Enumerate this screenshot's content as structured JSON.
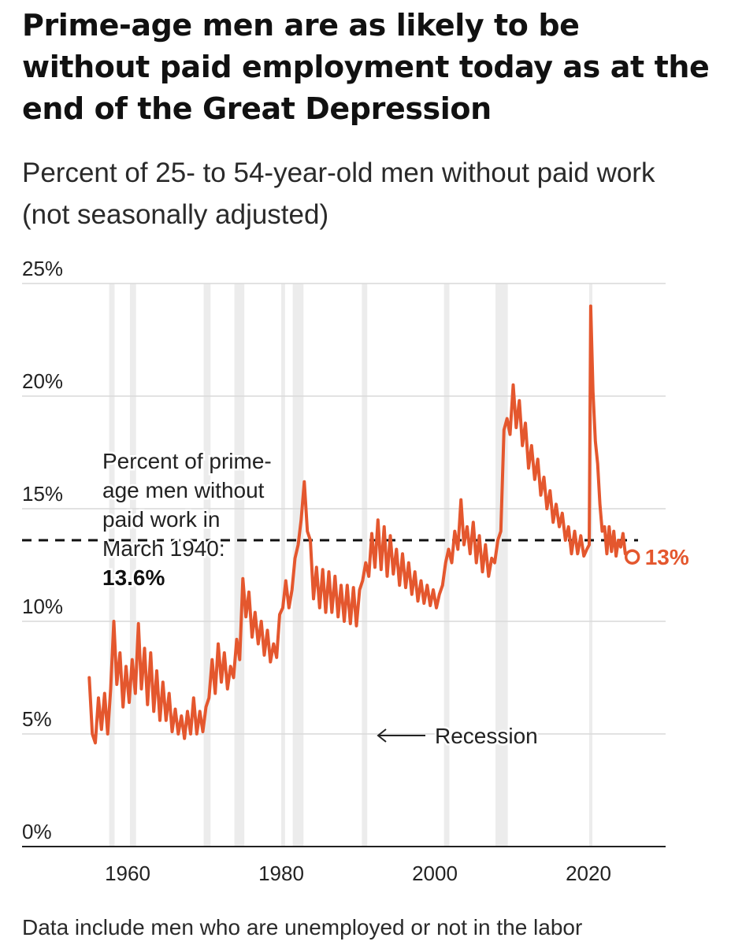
{
  "header": {
    "title": "Prime-age men are as likely to be without paid employment today as at the end of the Great Depression",
    "subtitle": "Percent of 25- to 54-year-old men without paid work (not seasonally adjusted)"
  },
  "footnote": "Data include men who are unemployed or not in the labor",
  "colors": {
    "line": "#e4572e",
    "recession_band": "#ececec",
    "grid": "#d9d9d9",
    "reference_line": "#111111"
  },
  "chart_data": {
    "type": "line",
    "title": "Prime-age men are as likely to be without paid employment today as at the end of the Great Depression",
    "subtitle": "Percent of 25- to 54-year-old men without paid work (not seasonally adjusted)",
    "xlabel": "",
    "ylabel": "",
    "xlim": [
      1950,
      2028
    ],
    "ylim": [
      0,
      25
    ],
    "grid": true,
    "y_ticks": [
      {
        "value": 25,
        "label": "25%"
      },
      {
        "value": 20,
        "label": "20%"
      },
      {
        "value": 15,
        "label": "15%"
      },
      {
        "value": 10,
        "label": "10%"
      },
      {
        "value": 5,
        "label": "5%"
      },
      {
        "value": 0,
        "label": "0%"
      }
    ],
    "x_ticks": [
      {
        "value": 1960,
        "label": "1960"
      },
      {
        "value": 1980,
        "label": "1980"
      },
      {
        "value": 2000,
        "label": "2000"
      },
      {
        "value": 2020,
        "label": "2020"
      }
    ],
    "recessions": [
      [
        1957.6,
        1958.3
      ],
      [
        1960.3,
        1961.1
      ],
      [
        1969.9,
        1970.8
      ],
      [
        1973.9,
        1975.2
      ],
      [
        1980.0,
        1980.5
      ],
      [
        1981.5,
        1982.9
      ],
      [
        1990.5,
        1991.2
      ],
      [
        2001.2,
        2001.9
      ],
      [
        2007.9,
        2009.5
      ],
      [
        2020.1,
        2020.3
      ]
    ],
    "recession_label": "Recession",
    "reference": {
      "value": 13.6,
      "label_lines": [
        "Percent of prime-",
        "age men without",
        "paid work in",
        "March 1940:"
      ],
      "value_label": "13.6%"
    },
    "end_label": "13%",
    "series": [
      {
        "values": [
          [
            1955.0,
            7.5
          ],
          [
            1955.4,
            5.0
          ],
          [
            1955.8,
            4.6
          ],
          [
            1956.2,
            6.6
          ],
          [
            1956.6,
            5.2
          ],
          [
            1957.0,
            6.8
          ],
          [
            1957.4,
            5.0
          ],
          [
            1957.8,
            7.0
          ],
          [
            1958.2,
            10.0
          ],
          [
            1958.6,
            7.2
          ],
          [
            1959.0,
            8.6
          ],
          [
            1959.4,
            6.2
          ],
          [
            1959.8,
            8.0
          ],
          [
            1960.2,
            6.4
          ],
          [
            1960.6,
            8.3
          ],
          [
            1961.0,
            6.8
          ],
          [
            1961.4,
            9.9
          ],
          [
            1961.8,
            7.0
          ],
          [
            1962.2,
            8.8
          ],
          [
            1962.6,
            6.3
          ],
          [
            1963.0,
            8.6
          ],
          [
            1963.4,
            6.0
          ],
          [
            1963.8,
            7.8
          ],
          [
            1964.2,
            5.6
          ],
          [
            1964.6,
            7.3
          ],
          [
            1965.0,
            5.6
          ],
          [
            1965.4,
            6.8
          ],
          [
            1965.8,
            5.1
          ],
          [
            1966.2,
            6.1
          ],
          [
            1966.6,
            5.0
          ],
          [
            1967.0,
            5.8
          ],
          [
            1967.4,
            4.8
          ],
          [
            1967.8,
            6.0
          ],
          [
            1968.2,
            5.0
          ],
          [
            1968.6,
            6.6
          ],
          [
            1969.0,
            5.0
          ],
          [
            1969.4,
            6.0
          ],
          [
            1969.8,
            5.1
          ],
          [
            1970.2,
            6.2
          ],
          [
            1970.6,
            6.6
          ],
          [
            1971.0,
            8.3
          ],
          [
            1971.4,
            6.8
          ],
          [
            1971.8,
            9.0
          ],
          [
            1972.2,
            7.3
          ],
          [
            1972.6,
            8.6
          ],
          [
            1973.0,
            7.0
          ],
          [
            1973.4,
            8.0
          ],
          [
            1973.8,
            7.5
          ],
          [
            1974.2,
            9.2
          ],
          [
            1974.6,
            8.3
          ],
          [
            1975.0,
            11.9
          ],
          [
            1975.4,
            10.2
          ],
          [
            1975.8,
            11.3
          ],
          [
            1976.2,
            9.3
          ],
          [
            1976.6,
            10.4
          ],
          [
            1977.0,
            9.0
          ],
          [
            1977.4,
            10.0
          ],
          [
            1977.8,
            8.5
          ],
          [
            1978.2,
            9.6
          ],
          [
            1978.6,
            8.2
          ],
          [
            1979.0,
            9.0
          ],
          [
            1979.4,
            8.4
          ],
          [
            1979.8,
            10.3
          ],
          [
            1980.2,
            10.6
          ],
          [
            1980.6,
            11.8
          ],
          [
            1981.0,
            10.6
          ],
          [
            1981.4,
            11.4
          ],
          [
            1981.8,
            12.8
          ],
          [
            1982.2,
            13.4
          ],
          [
            1982.6,
            14.5
          ],
          [
            1983.0,
            16.2
          ],
          [
            1983.4,
            14.0
          ],
          [
            1983.8,
            13.6
          ],
          [
            1984.2,
            11.0
          ],
          [
            1984.6,
            12.4
          ],
          [
            1985.0,
            10.6
          ],
          [
            1985.4,
            12.3
          ],
          [
            1985.8,
            10.4
          ],
          [
            1986.2,
            12.2
          ],
          [
            1986.6,
            10.4
          ],
          [
            1987.0,
            12.0
          ],
          [
            1987.4,
            10.2
          ],
          [
            1987.8,
            11.6
          ],
          [
            1988.2,
            10.0
          ],
          [
            1988.6,
            11.6
          ],
          [
            1989.0,
            9.9
          ],
          [
            1989.4,
            11.5
          ],
          [
            1989.8,
            9.8
          ],
          [
            1990.2,
            11.4
          ],
          [
            1990.6,
            11.8
          ],
          [
            1991.0,
            12.6
          ],
          [
            1991.4,
            12.0
          ],
          [
            1991.8,
            13.9
          ],
          [
            1992.2,
            12.4
          ],
          [
            1992.6,
            14.5
          ],
          [
            1993.0,
            12.3
          ],
          [
            1993.4,
            14.2
          ],
          [
            1993.8,
            12.0
          ],
          [
            1994.2,
            13.8
          ],
          [
            1994.6,
            12.1
          ],
          [
            1995.0,
            13.2
          ],
          [
            1995.4,
            11.6
          ],
          [
            1995.8,
            13.0
          ],
          [
            1996.2,
            11.5
          ],
          [
            1996.6,
            12.6
          ],
          [
            1997.0,
            11.2
          ],
          [
            1997.4,
            12.2
          ],
          [
            1997.8,
            10.9
          ],
          [
            1998.2,
            11.8
          ],
          [
            1998.6,
            10.8
          ],
          [
            1999.0,
            11.6
          ],
          [
            1999.4,
            10.7
          ],
          [
            1999.8,
            11.4
          ],
          [
            2000.2,
            10.6
          ],
          [
            2000.6,
            11.2
          ],
          [
            2001.0,
            11.6
          ],
          [
            2001.4,
            12.6
          ],
          [
            2001.8,
            13.2
          ],
          [
            2002.2,
            12.6
          ],
          [
            2002.6,
            14.0
          ],
          [
            2003.0,
            13.2
          ],
          [
            2003.4,
            15.4
          ],
          [
            2003.8,
            13.4
          ],
          [
            2004.2,
            14.2
          ],
          [
            2004.6,
            13.0
          ],
          [
            2005.0,
            14.4
          ],
          [
            2005.4,
            12.6
          ],
          [
            2005.8,
            13.8
          ],
          [
            2006.2,
            12.2
          ],
          [
            2006.6,
            13.4
          ],
          [
            2007.0,
            12.0
          ],
          [
            2007.4,
            12.8
          ],
          [
            2007.8,
            12.6
          ],
          [
            2008.2,
            13.6
          ],
          [
            2008.6,
            14.0
          ],
          [
            2009.0,
            18.5
          ],
          [
            2009.4,
            19.0
          ],
          [
            2009.8,
            18.3
          ],
          [
            2010.2,
            20.5
          ],
          [
            2010.6,
            18.6
          ],
          [
            2011.0,
            19.8
          ],
          [
            2011.4,
            17.8
          ],
          [
            2011.8,
            18.8
          ],
          [
            2012.2,
            16.8
          ],
          [
            2012.6,
            17.8
          ],
          [
            2013.0,
            16.3
          ],
          [
            2013.4,
            17.2
          ],
          [
            2013.8,
            15.6
          ],
          [
            2014.2,
            16.4
          ],
          [
            2014.6,
            15.0
          ],
          [
            2015.0,
            15.8
          ],
          [
            2015.4,
            14.4
          ],
          [
            2015.8,
            15.2
          ],
          [
            2016.2,
            14.2
          ],
          [
            2016.6,
            14.8
          ],
          [
            2017.0,
            13.6
          ],
          [
            2017.4,
            14.2
          ],
          [
            2017.8,
            13.0
          ],
          [
            2018.2,
            14.0
          ],
          [
            2018.6,
            13.0
          ],
          [
            2019.0,
            13.8
          ],
          [
            2019.4,
            12.9
          ],
          [
            2019.8,
            13.2
          ],
          [
            2020.1,
            13.4
          ],
          [
            2020.3,
            24.0
          ],
          [
            2020.6,
            20.2
          ],
          [
            2020.9,
            18.0
          ],
          [
            2021.2,
            17.0
          ],
          [
            2021.5,
            15.2
          ],
          [
            2021.8,
            14.0
          ],
          [
            2022.1,
            14.2
          ],
          [
            2022.4,
            13.0
          ],
          [
            2022.7,
            14.2
          ],
          [
            2023.0,
            13.1
          ],
          [
            2023.3,
            14.0
          ],
          [
            2023.6,
            12.9
          ],
          [
            2023.9,
            13.6
          ],
          [
            2024.2,
            13.3
          ],
          [
            2024.5,
            13.9
          ],
          [
            2024.8,
            13.0
          ],
          [
            2025.2,
            13.0
          ]
        ]
      }
    ]
  }
}
